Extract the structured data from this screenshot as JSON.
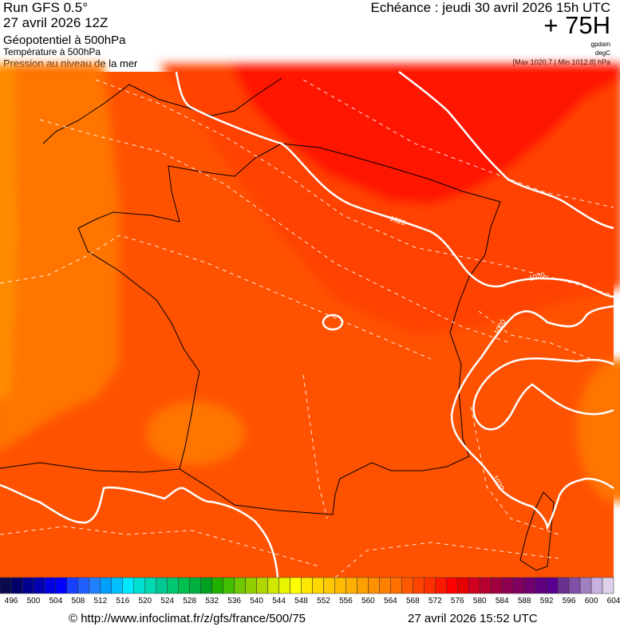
{
  "header": {
    "run": "Run GFS 0.5°",
    "run_date": "27 avril 2026 12Z",
    "param1": "Géopotentiel à 500hPa",
    "param2": "Température à 500hPa",
    "param3": "Pression au niveau de la mer",
    "echeance": "Echéance : jeudi 30 avril 2026 15h UTC",
    "lead": "+ 75H",
    "unit1": "gpdam",
    "unit2": "degC",
    "unit3": "[Max 1020.7 | Min 1012.8] hPa"
  },
  "map": {
    "isobar_labels": [
      "1020",
      "1020",
      "1020",
      "1020"
    ],
    "field_colors": {
      "far_west": "#ff8c00",
      "west": "#ff7400",
      "main": "#ff5200",
      "east": "#ff4200",
      "northeast": "#ff1800"
    },
    "contour_color": "#ffffff",
    "border_color": "#000000"
  },
  "colorbar": {
    "labels": [
      "496",
      "500",
      "504",
      "508",
      "512",
      "516",
      "520",
      "524",
      "528",
      "532",
      "536",
      "540",
      "544",
      "548",
      "552",
      "556",
      "560",
      "564",
      "568",
      "572",
      "576",
      "580",
      "584",
      "588",
      "592",
      "596",
      "600",
      "604"
    ],
    "colors": [
      "#0a0a50",
      "#000068",
      "#000090",
      "#0000b0",
      "#0000e0",
      "#0000ff",
      "#1840ff",
      "#2060ff",
      "#2080ff",
      "#00a0ff",
      "#00c0ff",
      "#00e8ff",
      "#00e0d0",
      "#00d8b0",
      "#00c890",
      "#00c870",
      "#00c050",
      "#00b040",
      "#00a020",
      "#20b000",
      "#40c000",
      "#70c800",
      "#90d000",
      "#b0d800",
      "#d0e800",
      "#e8f400",
      "#ffff00",
      "#ffe800",
      "#ffd800",
      "#ffc800",
      "#ffbc00",
      "#ffb000",
      "#ffa000",
      "#ff9000",
      "#ff8000",
      "#ff7000",
      "#ff5800",
      "#ff4400",
      "#ff3000",
      "#ff1800",
      "#ff0000",
      "#e80000",
      "#d00020",
      "#b80030",
      "#a00040",
      "#900050",
      "#800060",
      "#700070",
      "#600080",
      "#5a0090",
      "#6a3090",
      "#8050a8",
      "#a080c0",
      "#c8b0e0",
      "#ddd0e8"
    ]
  },
  "footer": {
    "copyright": "© http://www.infoclimat.fr/z/gfs/france/500/75",
    "generated": "27 avril 2026 15:52 UTC"
  }
}
